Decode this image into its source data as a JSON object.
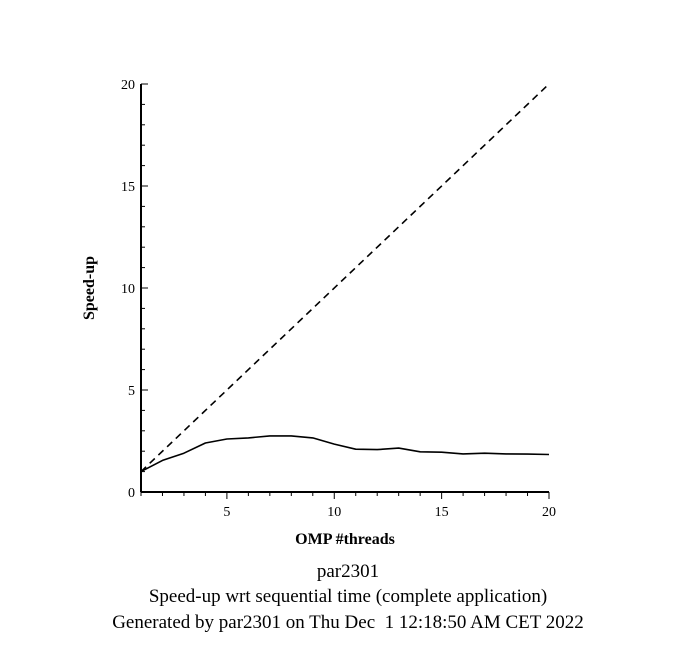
{
  "chart_data": {
    "type": "line",
    "xlabel": "OMP #threads",
    "ylabel": "Speed-up",
    "xlim": [
      1,
      20
    ],
    "ylim": [
      0,
      20
    ],
    "x_ticks": [
      5,
      10,
      15,
      20
    ],
    "y_ticks": [
      0,
      5,
      10,
      15,
      20
    ],
    "x_tick_labels": [
      "5",
      "10",
      "15",
      "20"
    ],
    "y_tick_labels": [
      "0",
      "5",
      "10",
      "15",
      "20"
    ],
    "grid": false,
    "series": [
      {
        "style": "solid",
        "x": [
          1,
          2,
          3,
          4,
          5,
          6,
          7,
          8,
          9,
          10,
          11,
          12,
          13,
          14,
          15,
          16,
          17,
          18,
          19,
          20
        ],
        "y": [
          1.0,
          1.55,
          1.9,
          2.4,
          2.6,
          2.65,
          2.75,
          2.75,
          2.65,
          2.35,
          2.1,
          2.08,
          2.15,
          1.97,
          1.95,
          1.87,
          1.9,
          1.87,
          1.86,
          1.84
        ]
      },
      {
        "style": "dashed",
        "x": [
          1,
          20
        ],
        "y": [
          1,
          20
        ]
      }
    ]
  },
  "captions": {
    "line1": "par2301",
    "line2": "Speed-up wrt sequential time (complete application)",
    "line3": "Generated by par2301 on Thu Dec  1 12:18:50 AM CET 2022"
  }
}
